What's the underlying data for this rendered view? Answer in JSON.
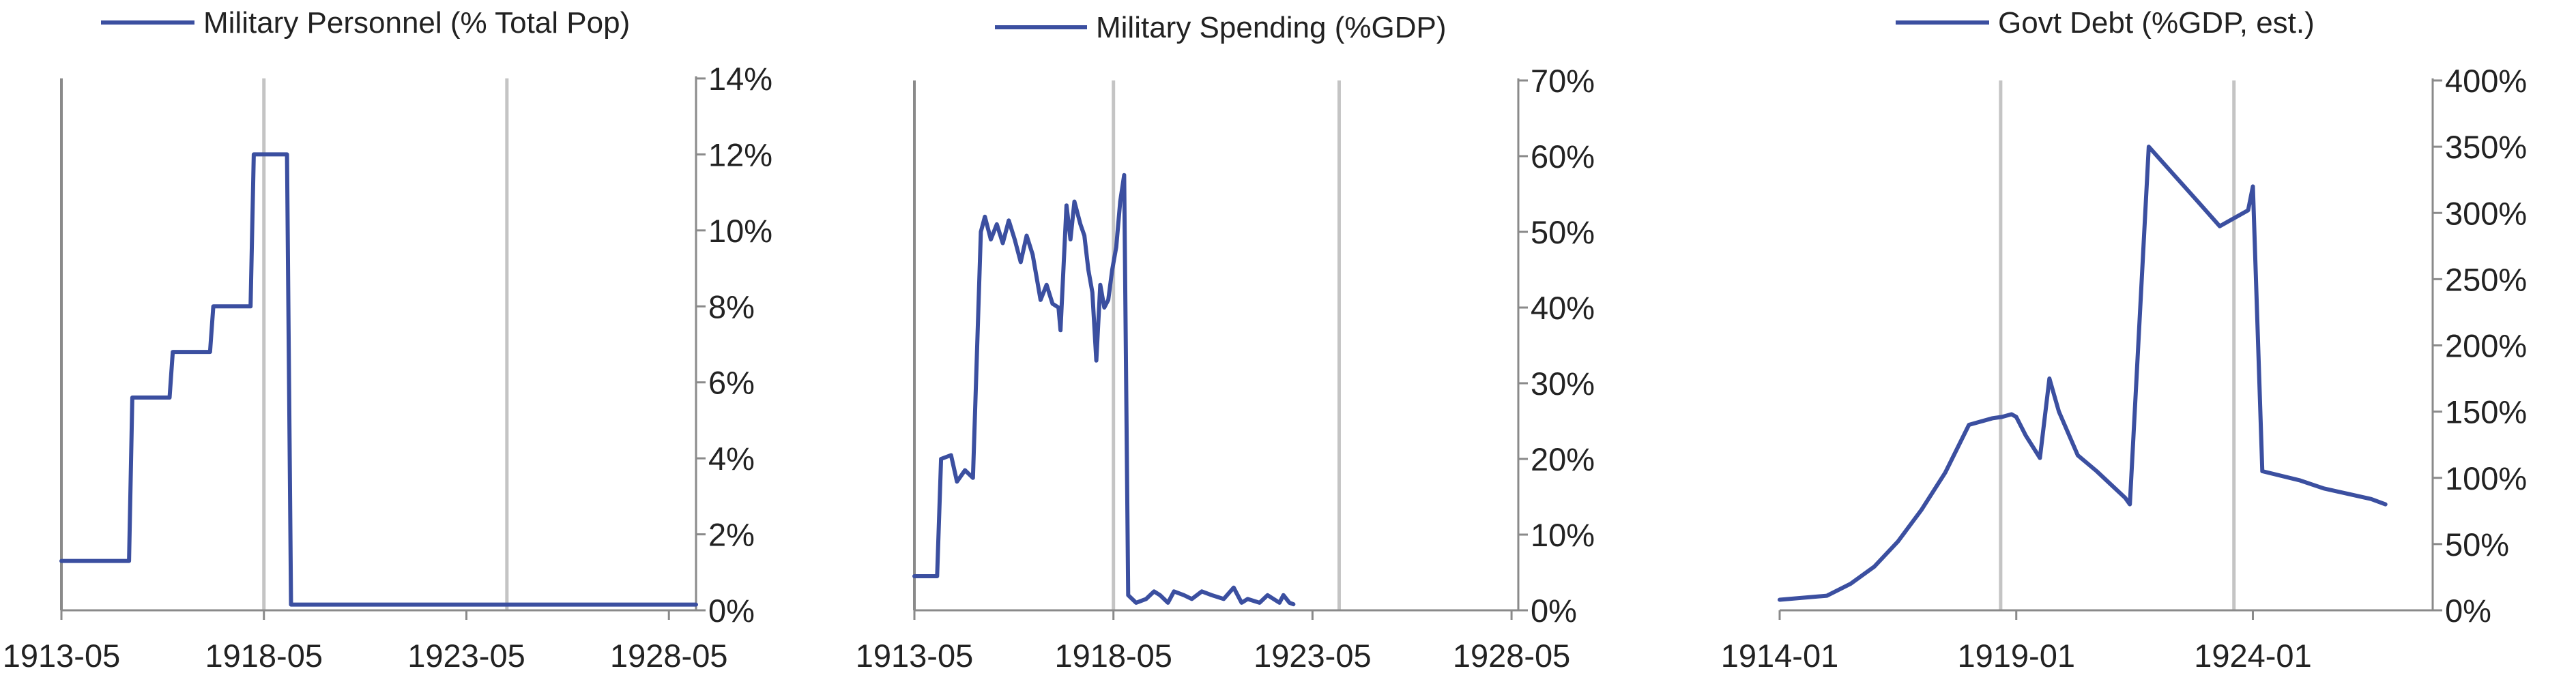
{
  "colors": {
    "series": "#3b4fa0",
    "axis": "#8a8a8a",
    "vline": "#c4c4c4",
    "text": "#222222"
  },
  "chart_data": [
    {
      "type": "line",
      "title": "",
      "legend": "Military Personnel (% Total Pop)",
      "legend_position": "top-center",
      "y_axis_side": "right",
      "x_scale": [
        1913.33,
        1929.0
      ],
      "x_ticks": [
        {
          "label": "1913-05",
          "x": 1913.33
        },
        {
          "label": "1918-05",
          "x": 1918.33
        },
        {
          "label": "1923-05",
          "x": 1923.33
        },
        {
          "label": "1928-05",
          "x": 1928.33
        }
      ],
      "y_ticks": [
        "0%",
        "2%",
        "4%",
        "6%",
        "8%",
        "10%",
        "12%",
        "14%"
      ],
      "ylim": [
        0,
        14
      ],
      "vertical_lines": [
        1918.33,
        1924.33
      ],
      "series": [
        {
          "x": [
            1913.33,
            1914.0,
            1915.0,
            1915.08,
            1916.0,
            1916.08,
            1917.0,
            1917.08,
            1918.0,
            1918.08,
            1918.9,
            1919.0,
            1929.0
          ],
          "y": [
            1.3,
            1.3,
            1.3,
            5.6,
            5.6,
            6.8,
            6.8,
            8.0,
            8.0,
            12.0,
            12.0,
            0.15,
            0.15
          ]
        }
      ]
    },
    {
      "type": "line",
      "title": "",
      "legend": "Military Spending (%GDP)",
      "legend_position": "top-center",
      "y_axis_side": "right",
      "x_scale": [
        1913.33,
        1928.5
      ],
      "x_ticks": [
        {
          "label": "1913-05",
          "x": 1913.33
        },
        {
          "label": "1918-05",
          "x": 1918.33
        },
        {
          "label": "1923-05",
          "x": 1923.33
        },
        {
          "label": "1928-05",
          "x": 1928.33
        }
      ],
      "y_ticks": [
        "0%",
        "10%",
        "20%",
        "30%",
        "40%",
        "50%",
        "60%",
        "70%"
      ],
      "ylim": [
        0,
        70
      ],
      "vertical_lines": [
        1918.33,
        1924.0
      ],
      "series": [
        {
          "x": [
            1913.33,
            1913.9,
            1914.0,
            1914.25,
            1914.4,
            1914.6,
            1914.8,
            1915.0,
            1915.1,
            1915.25,
            1915.4,
            1915.55,
            1915.7,
            1915.85,
            1916.0,
            1916.15,
            1916.3,
            1916.5,
            1916.65,
            1916.8,
            1916.95,
            1917.0,
            1917.15,
            1917.25,
            1917.35,
            1917.5,
            1917.6,
            1917.7,
            1917.8,
            1917.9,
            1918.0,
            1918.1,
            1918.2,
            1918.3,
            1918.4,
            1918.5,
            1918.6,
            1918.7,
            1918.9,
            1919.15,
            1919.35,
            1919.5,
            1919.7,
            1919.85,
            1920.1,
            1920.3,
            1920.55,
            1920.8,
            1921.1,
            1921.35,
            1921.55,
            1921.7,
            1922.0,
            1922.2,
            1922.5,
            1922.6,
            1922.75,
            1922.85
          ],
          "y": [
            4.5,
            4.5,
            20.0,
            20.5,
            17.0,
            18.5,
            17.5,
            50.0,
            52.0,
            49.0,
            51.0,
            48.5,
            51.5,
            49.0,
            46.0,
            49.5,
            47.0,
            41.0,
            43.0,
            40.5,
            40.0,
            37.0,
            53.5,
            49.0,
            54.0,
            51.0,
            49.5,
            45.0,
            42.0,
            33.0,
            43.0,
            40.0,
            41.0,
            45.0,
            48.0,
            54.0,
            57.5,
            2.0,
            1.0,
            1.5,
            2.5,
            2.0,
            1.0,
            2.5,
            2.0,
            1.5,
            2.5,
            2.0,
            1.5,
            3.0,
            1.0,
            1.5,
            1.0,
            2.0,
            1.0,
            2.0,
            1.0,
            0.8
          ]
        }
      ]
    },
    {
      "type": "line",
      "title": "",
      "legend": "Govt Debt (%GDP, est.)",
      "legend_position": "top-center",
      "y_axis_side": "right",
      "x_scale": [
        1914.0,
        1927.8
      ],
      "x_ticks": [
        {
          "label": "1914-01",
          "x": 1914.0
        },
        {
          "label": "1919-01",
          "x": 1919.0
        },
        {
          "label": "1924-01",
          "x": 1924.0
        }
      ],
      "y_ticks": [
        "0%",
        "50%",
        "100%",
        "150%",
        "200%",
        "250%",
        "300%",
        "350%",
        "400%"
      ],
      "ylim": [
        0,
        400
      ],
      "vertical_lines": [
        1918.67,
        1923.6
      ],
      "series": [
        {
          "x": [
            1914.0,
            1915.0,
            1915.5,
            1916.0,
            1916.5,
            1917.0,
            1917.5,
            1918.0,
            1918.3,
            1918.5,
            1918.7,
            1918.9,
            1919.0,
            1919.2,
            1919.5,
            1919.7,
            1919.9,
            1920.3,
            1920.7,
            1921.0,
            1921.3,
            1921.4,
            1921.8,
            1922.3,
            1922.8,
            1923.3,
            1923.9,
            1924.0,
            1924.2,
            1925.0,
            1925.5,
            1926.0,
            1926.5,
            1926.8
          ],
          "y": [
            8.0,
            11.0,
            20.0,
            33.0,
            52.0,
            76.0,
            104.0,
            140.0,
            143.0,
            145.0,
            146.0,
            148.0,
            146.0,
            132.0,
            115.0,
            175.0,
            150.0,
            117.0,
            105.0,
            95.0,
            85.0,
            80.0,
            350.0,
            330.0,
            310.0,
            290.0,
            302.0,
            320.0,
            105.0,
            98.0,
            92.0,
            88.0,
            84.0,
            80.0
          ]
        }
      ]
    }
  ]
}
